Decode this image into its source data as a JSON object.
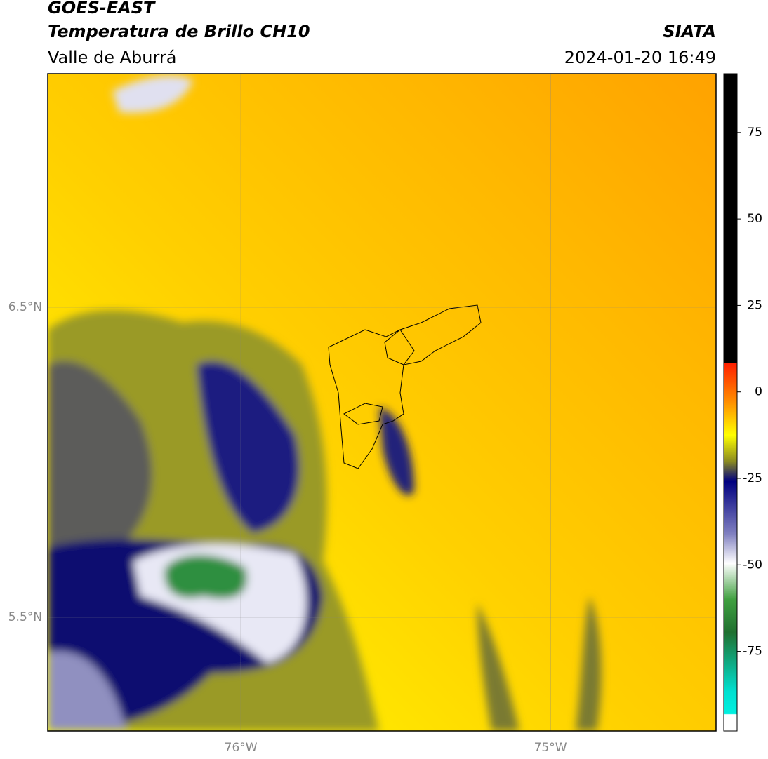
{
  "header": {
    "title": "GOES-EAST",
    "subtitle": "Temperatura de Brillo CH10",
    "region": "Valle de Aburrá",
    "source": "SIATA",
    "timestamp": "2024-01-20 16:49"
  },
  "map": {
    "xlim": [
      -76.624,
      -74.465
    ],
    "ylim": [
      5.133,
      7.253
    ],
    "xticks": [
      {
        "value": -76,
        "label": "76°W"
      },
      {
        "value": -75,
        "label": "75°W"
      }
    ],
    "yticks": [
      {
        "value": 6.5,
        "label": "6.5°N"
      },
      {
        "value": 5.5,
        "label": "5.5°N"
      }
    ]
  },
  "colorbar": {
    "lim": [
      -98,
      92
    ],
    "ticks": [
      75,
      50,
      25,
      0,
      -25,
      -50,
      -75
    ]
  }
}
